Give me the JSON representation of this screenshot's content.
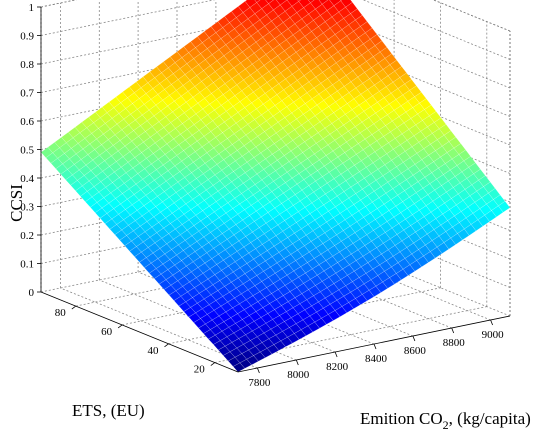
{
  "chart_data": {
    "type": "surface",
    "title": "",
    "xlabel": "ETS, (EU)",
    "ylabel_prefix": "Emition CO",
    "ylabel_subscript": "2",
    "ylabel_suffix": ", (kg/capita)",
    "zlabel": "CCSI",
    "x": [
      10,
      95
    ],
    "y": [
      7700,
      9100
    ],
    "z": [
      [
        0.0,
        0.38
      ],
      [
        0.49,
        1.0
      ]
    ],
    "x_ticks": [
      "20",
      "40",
      "60",
      "80"
    ],
    "y_ticks": [
      "7800",
      "8000",
      "8200",
      "8400",
      "8600",
      "8800",
      "9000"
    ],
    "z_ticks": [
      "0",
      "0.1",
      "0.2",
      "0.3",
      "0.4",
      "0.5",
      "0.6",
      "0.7",
      "0.8",
      "0.9",
      "1"
    ],
    "xlim": [
      10,
      95
    ],
    "ylim": [
      7700,
      9100
    ],
    "zlim": [
      0,
      1
    ],
    "grid": true,
    "colormap": "jet",
    "colors": [
      "#00008f",
      "#0000ff",
      "#00ffff",
      "#ffff00",
      "#ff0000",
      "#800000"
    ]
  }
}
